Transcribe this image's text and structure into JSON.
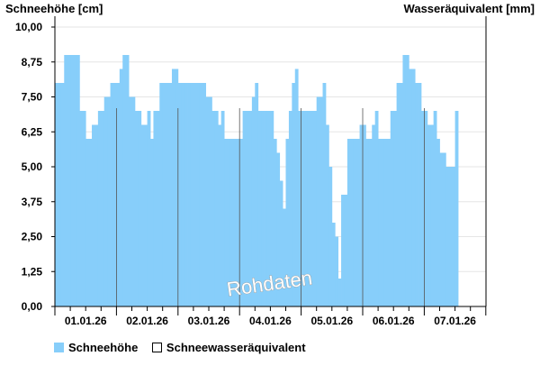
{
  "chart_data": {
    "type": "area",
    "ylabel": "Schneehöhe [cm]",
    "y2label": "Wasseräquivalent [mm]",
    "ylim": [
      0,
      10
    ],
    "yticks": [
      "0,00",
      "1,25",
      "2,50",
      "3,75",
      "5,00",
      "6,25",
      "7,50",
      "8,75",
      "10,00"
    ],
    "categories": [
      "01.01.26",
      "02.01.26",
      "03.01.26",
      "04.01.26",
      "05.01.26",
      "06.01.26",
      "07.01.26"
    ],
    "x_range_days": [
      0,
      7
    ],
    "series": [
      {
        "name": "Schneehöhe",
        "color": "#87cefa",
        "points": [
          [
            0.0,
            8
          ],
          [
            0.1,
            8
          ],
          [
            0.12,
            9
          ],
          [
            0.2,
            9
          ],
          [
            0.3,
            9
          ],
          [
            0.38,
            7
          ],
          [
            0.45,
            6
          ],
          [
            0.55,
            6.5
          ],
          [
            0.65,
            7
          ],
          [
            0.8,
            7.5
          ],
          [
            0.9,
            8
          ],
          [
            1.0,
            8
          ],
          [
            1.05,
            8.5
          ],
          [
            1.1,
            9
          ],
          [
            1.18,
            7.5
          ],
          [
            1.3,
            7
          ],
          [
            1.4,
            6.5
          ],
          [
            1.5,
            7
          ],
          [
            1.55,
            6
          ],
          [
            1.6,
            7
          ],
          [
            1.7,
            8
          ],
          [
            1.8,
            8
          ],
          [
            1.9,
            8.5
          ],
          [
            2.0,
            8
          ],
          [
            2.1,
            8
          ],
          [
            2.2,
            8
          ],
          [
            2.3,
            8
          ],
          [
            2.4,
            7.5
          ],
          [
            2.5,
            7
          ],
          [
            2.6,
            6.5
          ],
          [
            2.65,
            7
          ],
          [
            2.7,
            6
          ],
          [
            2.8,
            6
          ],
          [
            2.9,
            6
          ],
          [
            3.0,
            7
          ],
          [
            3.1,
            7
          ],
          [
            3.15,
            7.5
          ],
          [
            3.2,
            8
          ],
          [
            3.25,
            7
          ],
          [
            3.3,
            7
          ],
          [
            3.4,
            7
          ],
          [
            3.5,
            6
          ],
          [
            3.55,
            5.5
          ],
          [
            3.6,
            4.5
          ],
          [
            3.65,
            3.5
          ],
          [
            3.7,
            6
          ],
          [
            3.75,
            7
          ],
          [
            3.8,
            8
          ],
          [
            3.85,
            8.5
          ],
          [
            3.9,
            7
          ],
          [
            4.0,
            7
          ],
          [
            4.1,
            7
          ],
          [
            4.2,
            7.5
          ],
          [
            4.3,
            8
          ],
          [
            4.35,
            6.5
          ],
          [
            4.4,
            5
          ],
          [
            4.45,
            3
          ],
          [
            4.5,
            2.5
          ],
          [
            4.55,
            1
          ],
          [
            4.6,
            4
          ],
          [
            4.7,
            6
          ],
          [
            4.8,
            6
          ],
          [
            4.9,
            6.5
          ],
          [
            5.0,
            6
          ],
          [
            5.1,
            6.5
          ],
          [
            5.15,
            7
          ],
          [
            5.2,
            6
          ],
          [
            5.3,
            6
          ],
          [
            5.4,
            7
          ],
          [
            5.5,
            8
          ],
          [
            5.6,
            9
          ],
          [
            5.7,
            8.5
          ],
          [
            5.8,
            8
          ],
          [
            5.9,
            7
          ],
          [
            6.0,
            6.5
          ],
          [
            6.1,
            7
          ],
          [
            6.15,
            6
          ],
          [
            6.2,
            5.5
          ],
          [
            6.3,
            5
          ],
          [
            6.4,
            5
          ],
          [
            6.45,
            7
          ],
          [
            6.5,
            5
          ]
        ]
      },
      {
        "name": "Schneewasseräquivalent",
        "color": "#ffffff",
        "points": []
      }
    ],
    "grid": true,
    "legend_position": "bottom-left"
  },
  "watermark": "Rohdaten"
}
